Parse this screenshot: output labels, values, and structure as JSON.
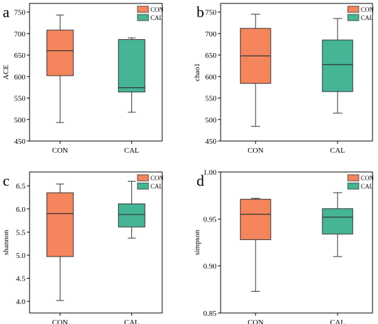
{
  "colors": {
    "CON": "#f4855d",
    "CAL": "#45b596",
    "stroke": "#333333"
  },
  "legend": {
    "CON": "CON",
    "CAL": "CAL"
  },
  "chart_data": [
    {
      "type": "box",
      "panel_letter": "a",
      "ylabel": "ACE",
      "ylim": [
        450,
        770
      ],
      "yticks": [
        450,
        500,
        550,
        600,
        650,
        700,
        750
      ],
      "tick_labels": [
        "450",
        "500",
        "550",
        "600",
        "650",
        "700",
        "750"
      ],
      "categories": [
        "CON",
        "CAL"
      ],
      "series": [
        {
          "name": "CON",
          "min": 493,
          "q1": 602,
          "median": 660,
          "q3": 708,
          "max": 743
        },
        {
          "name": "CAL",
          "min": 517,
          "q1": 564,
          "median": 574,
          "q3": 686,
          "max": 690
        }
      ]
    },
    {
      "type": "box",
      "panel_letter": "b",
      "ylabel": "chao1",
      "ylim": [
        450,
        770
      ],
      "yticks": [
        450,
        500,
        550,
        600,
        650,
        700,
        750
      ],
      "tick_labels": [
        "450",
        "500",
        "550",
        "600",
        "650",
        "700",
        "750"
      ],
      "categories": [
        "CON",
        "CAL"
      ],
      "series": [
        {
          "name": "CON",
          "min": 484,
          "q1": 584,
          "median": 648,
          "q3": 712,
          "max": 745
        },
        {
          "name": "CAL",
          "min": 515,
          "q1": 565,
          "median": 628,
          "q3": 685,
          "max": 735
        }
      ]
    },
    {
      "type": "box",
      "panel_letter": "c",
      "ylabel": "shannon",
      "ylim": [
        3.75,
        6.8
      ],
      "yticks": [
        4.0,
        4.5,
        5.0,
        5.5,
        6.0,
        6.5
      ],
      "tick_labels": [
        "4.0",
        "4.5",
        "5.0",
        "5.5",
        "6.0",
        "6.5"
      ],
      "categories": [
        "CON",
        "CAL"
      ],
      "series": [
        {
          "name": "CON",
          "min": 4.02,
          "q1": 4.97,
          "median": 5.9,
          "q3": 6.35,
          "max": 6.54
        },
        {
          "name": "CAL",
          "min": 5.37,
          "q1": 5.61,
          "median": 5.88,
          "q3": 6.11,
          "max": 6.6
        }
      ]
    },
    {
      "type": "box",
      "panel_letter": "d",
      "ylabel": "simpson",
      "ylim": [
        0.85,
        1.0
      ],
      "yticks": [
        0.85,
        0.9,
        0.95,
        1.0
      ],
      "tick_labels": [
        "0.85",
        "0.90",
        "0.95",
        "1.00"
      ],
      "categories": [
        "CON",
        "CAL"
      ],
      "series": [
        {
          "name": "CON",
          "min": 0.873,
          "q1": 0.928,
          "median": 0.955,
          "q3": 0.971,
          "max": 0.972
        },
        {
          "name": "CAL",
          "min": 0.91,
          "q1": 0.934,
          "median": 0.952,
          "q3": 0.961,
          "max": 0.978
        }
      ]
    }
  ]
}
